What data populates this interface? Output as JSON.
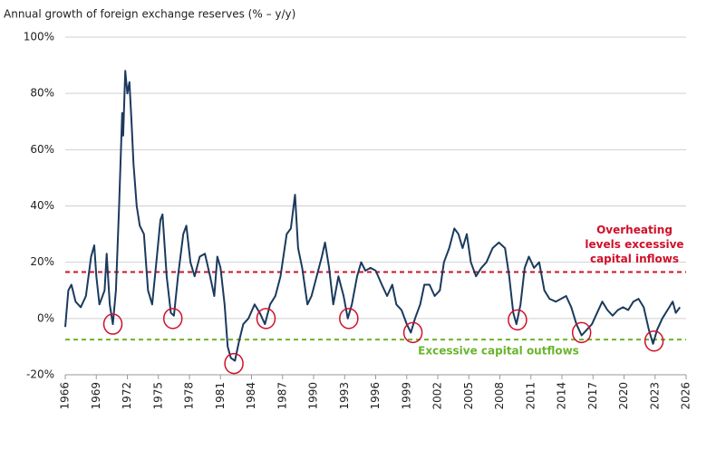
{
  "chart_data": {
    "type": "line",
    "title": "Annual growth of foreign exchange reserves (% – y/y)",
    "color": "#1b3a5e",
    "grid": true,
    "xlim": [
      1966,
      2026
    ],
    "xticks": [
      1966,
      1969,
      1972,
      1975,
      1978,
      1981,
      1984,
      1987,
      1990,
      1993,
      1996,
      1999,
      2002,
      2005,
      2008,
      2011,
      2014,
      2017,
      2020,
      2023,
      2026
    ],
    "ylim": [
      -20,
      100
    ],
    "yticks": [
      {
        "value": -20,
        "label": "-20%"
      },
      {
        "value": 0,
        "label": "0%"
      },
      {
        "value": 20,
        "label": "20%"
      },
      {
        "value": 40,
        "label": "40%"
      },
      {
        "value": 60,
        "label": "60%"
      },
      {
        "value": 80,
        "label": "80%"
      },
      {
        "value": 100,
        "label": "100%"
      }
    ],
    "x": [
      1966.0,
      1966.3,
      1966.6,
      1967.0,
      1967.5,
      1968.0,
      1968.5,
      1968.8,
      1969.0,
      1969.3,
      1969.8,
      1970.0,
      1970.3,
      1970.6,
      1970.9,
      1971.2,
      1971.5,
      1971.6,
      1971.8,
      1972.0,
      1972.2,
      1972.4,
      1972.6,
      1972.9,
      1973.2,
      1973.6,
      1974.0,
      1974.4,
      1974.8,
      1975.2,
      1975.4,
      1975.8,
      1976.2,
      1976.5,
      1976.9,
      1977.4,
      1977.7,
      1978.1,
      1978.5,
      1979.0,
      1979.5,
      1980.0,
      1980.4,
      1980.7,
      1981.0,
      1981.4,
      1981.7,
      1982.0,
      1982.4,
      1982.8,
      1983.2,
      1983.7,
      1984.3,
      1984.8,
      1985.3,
      1985.8,
      1986.3,
      1986.8,
      1987.4,
      1987.8,
      1988.2,
      1988.5,
      1988.9,
      1989.4,
      1989.8,
      1990.3,
      1990.8,
      1991.1,
      1991.5,
      1991.9,
      1992.4,
      1992.9,
      1993.3,
      1993.7,
      1994.2,
      1994.6,
      1995.0,
      1995.5,
      1996.0,
      1996.6,
      1997.1,
      1997.6,
      1998.0,
      1998.5,
      1999.0,
      1999.4,
      1999.8,
      2000.3,
      2000.7,
      2001.2,
      2001.7,
      2002.2,
      2002.6,
      2003.1,
      2003.6,
      2004.0,
      2004.4,
      2004.8,
      2005.2,
      2005.7,
      2006.2,
      2006.7,
      2007.3,
      2007.9,
      2008.5,
      2008.9,
      2009.3,
      2009.6,
      2010.0,
      2010.4,
      2010.8,
      2011.3,
      2011.8,
      2012.3,
      2012.8,
      2013.4,
      2013.9,
      2014.4,
      2014.9,
      2015.4,
      2015.9,
      2016.4,
      2016.9,
      2017.4,
      2017.9,
      2018.4,
      2018.9,
      2019.4,
      2019.9,
      2020.4,
      2020.9,
      2021.4,
      2021.9,
      2022.4,
      2022.8,
      2023.2,
      2023.7,
      2024.2,
      2024.7,
      2025.0,
      2025.4
    ],
    "values": [
      -3,
      10,
      12,
      6,
      4,
      8,
      22,
      26,
      15,
      5,
      10,
      23,
      5,
      -2,
      10,
      40,
      73,
      65,
      88,
      80,
      84,
      70,
      55,
      40,
      33,
      30,
      10,
      5,
      20,
      35,
      37,
      15,
      2,
      1,
      15,
      30,
      33,
      20,
      15,
      22,
      23,
      15,
      8,
      22,
      18,
      5,
      -10,
      -14,
      -15,
      -8,
      -2,
      0,
      5,
      2,
      -2,
      5,
      8,
      15,
      30,
      32,
      44,
      25,
      18,
      5,
      8,
      15,
      22,
      27,
      18,
      5,
      15,
      8,
      0,
      5,
      15,
      20,
      17,
      18,
      17,
      12,
      8,
      12,
      5,
      3,
      -2,
      -5,
      0,
      5,
      12,
      12,
      8,
      10,
      20,
      25,
      32,
      30,
      25,
      30,
      20,
      15,
      18,
      20,
      25,
      27,
      25,
      15,
      2,
      -2,
      5,
      18,
      22,
      18,
      20,
      10,
      7,
      6,
      7,
      8,
      4,
      -2,
      -6,
      -4,
      -2,
      2,
      6,
      3,
      1,
      3,
      4,
      3,
      6,
      7,
      4,
      -4,
      -9,
      -4,
      0,
      3,
      6,
      2,
      4
    ],
    "highlights": [
      {
        "x": 1970.6,
        "y": -2
      },
      {
        "x": 1976.4,
        "y": 0
      },
      {
        "x": 1982.3,
        "y": -16
      },
      {
        "x": 1985.4,
        "y": 0
      },
      {
        "x": 1993.4,
        "y": 0
      },
      {
        "x": 1999.6,
        "y": -5
      },
      {
        "x": 2009.7,
        "y": -0.5
      },
      {
        "x": 2015.9,
        "y": -5
      },
      {
        "x": 2022.9,
        "y": -8
      }
    ],
    "highlight_color": "#d0102a",
    "reference_lines": [
      {
        "value": 16.5,
        "color": "#d0102a",
        "label": [
          "Overheating",
          "levels excessive",
          "capital inflows"
        ]
      },
      {
        "value": -7.5,
        "color": "#6ab42d",
        "label": [
          "Excessive capital outflows"
        ]
      }
    ]
  }
}
